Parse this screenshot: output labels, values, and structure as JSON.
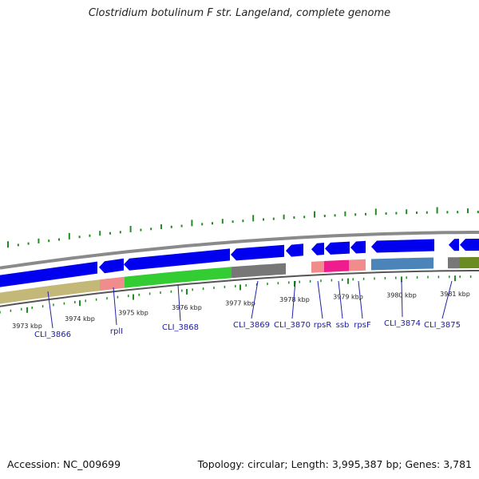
{
  "title": "Clostridium botulinum F str. Langeland, complete genome",
  "footer": {
    "accession": "Accession: NC_009699",
    "summary": "Topology: circular; Length: 3,995,387 bp; Genes: 3,781"
  },
  "colors": {
    "forward_strand": "#0000ee",
    "ribosomal": "#f08c8c",
    "rpsR_ssb": "#ee1c8c",
    "blue_gene": "#4a84b8",
    "green_gene": "#33cc33",
    "olive_gene": "#c4b878",
    "olive_dark": "#6a8a22",
    "gray_gene": "#777777",
    "backbone": "#8a8a8a",
    "gc_tick": "#228b22",
    "label_line": "#2222aa"
  },
  "axis": {
    "unit": "kbp",
    "ticks": [
      "3973 kbp",
      "3974 kbp",
      "3975 kbp",
      "3976 kbp",
      "3977 kbp",
      "3978 kbp",
      "3979 kbp",
      "3980 kbp",
      "3981 kbp"
    ]
  },
  "genes": [
    {
      "label": "CLI_3866"
    },
    {
      "label": "rplI"
    },
    {
      "label": "CLI_3868"
    },
    {
      "label": "CLI_3869"
    },
    {
      "label": "CLI_3870"
    },
    {
      "label": "rpsR"
    },
    {
      "label": "ssb"
    },
    {
      "label": "rpsF"
    },
    {
      "label": "CLI_3874"
    },
    {
      "label": "CLI_3875"
    }
  ]
}
